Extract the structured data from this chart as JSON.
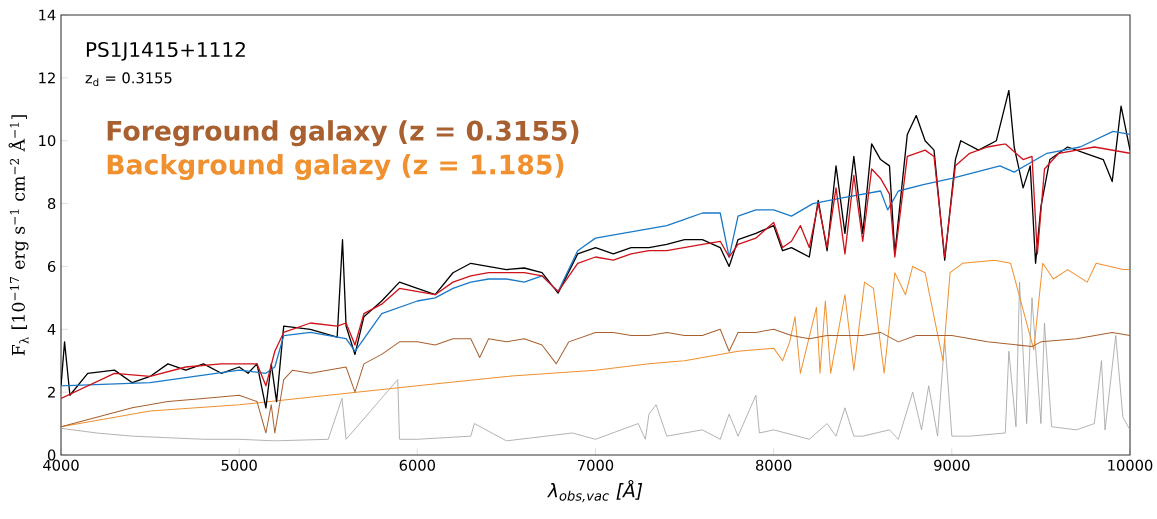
{
  "chart_data": {
    "type": "line",
    "title": "PS1J1415+1112",
    "subtitle": "z$_{d}$ = 0.3155",
    "xlabel": "λ$_{obs,vac}$ [Å]",
    "ylabel": "F$_{λ}$ [10$^{−17}$ erg s$^{−1}$ cm$^{−2}$ Å$^{−1}$]",
    "xlim": [
      4000,
      10000
    ],
    "ylim": [
      0,
      14
    ],
    "xticks": [
      4000,
      5000,
      6000,
      7000,
      8000,
      9000,
      10000
    ],
    "yticks": [
      0,
      2,
      4,
      6,
      8,
      10,
      12,
      14
    ],
    "grid": false,
    "legend": false,
    "series": [
      {
        "color": "#a0a0a0",
        "x": [
          4000,
          4200,
          4400,
          4600,
          4800,
          5000,
          5200,
          5500,
          5577,
          5600,
          5890,
          5900,
          6000,
          6300,
          6320,
          6500,
          6870,
          7000,
          7240,
          7280,
          7300,
          7340,
          7400,
          7600,
          7700,
          7750,
          7800,
          7900,
          7920,
          8000,
          8200,
          8300,
          8350,
          8400,
          8450,
          8500,
          8650,
          8700,
          8780,
          8830,
          8870,
          8920,
          8960,
          9000,
          9100,
          9300,
          9320,
          9360,
          9380,
          9420,
          9450,
          9500,
          9520,
          9560,
          9700,
          9800,
          9840,
          9860,
          9920,
          9960,
          10000
        ],
        "values": [
          0.85,
          0.7,
          0.6,
          0.55,
          0.5,
          0.5,
          0.45,
          0.5,
          1.8,
          0.5,
          2.4,
          0.5,
          0.5,
          0.6,
          1.0,
          0.45,
          0.7,
          0.5,
          1.0,
          0.5,
          1.3,
          1.6,
          0.6,
          0.8,
          0.5,
          1.3,
          0.6,
          1.9,
          0.7,
          0.8,
          0.5,
          1.0,
          0.6,
          1.5,
          0.6,
          0.6,
          0.8,
          0.5,
          2.0,
          0.8,
          2.2,
          0.6,
          3.7,
          0.6,
          0.6,
          0.7,
          3.3,
          0.9,
          5.5,
          1.0,
          5.0,
          1.0,
          4.2,
          0.9,
          0.8,
          1.0,
          3.0,
          0.8,
          3.8,
          1.2,
          0.8
        ]
      },
      {
        "name": "Background galazy (z = 1.185)",
        "color": "#f0902f",
        "x": [
          4000,
          4500,
          5000,
          5500,
          6000,
          6500,
          7000,
          7300,
          7500,
          7800,
          8000,
          8050,
          8090,
          8120,
          8150,
          8240,
          8260,
          8290,
          8320,
          8400,
          8450,
          8510,
          8560,
          8620,
          8680,
          8740,
          8780,
          8850,
          8950,
          8990,
          9060,
          9240,
          9330,
          9460,
          9510,
          9570,
          9650,
          9760,
          9810,
          9960,
          10000
        ],
        "values": [
          0.9,
          1.4,
          1.6,
          1.9,
          2.2,
          2.5,
          2.7,
          2.9,
          3.0,
          3.3,
          3.4,
          3.0,
          3.6,
          4.4,
          2.6,
          4.7,
          2.6,
          4.9,
          2.6,
          5.1,
          2.7,
          5.5,
          5.3,
          2.6,
          5.8,
          5.1,
          6.0,
          5.8,
          3.0,
          5.8,
          6.1,
          6.2,
          6.1,
          3.35,
          6.1,
          5.6,
          5.9,
          5.5,
          6.1,
          5.9,
          5.9
        ]
      },
      {
        "name": "Foreground galaxy (z = 0.3155)",
        "color": "#a86030",
        "x": [
          4000,
          4200,
          4400,
          4600,
          4800,
          5000,
          5100,
          5150,
          5180,
          5200,
          5250,
          5300,
          5400,
          5500,
          5600,
          5650,
          5700,
          5800,
          5900,
          6000,
          6100,
          6200,
          6300,
          6350,
          6400,
          6500,
          6600,
          6700,
          6780,
          6850,
          7000,
          7100,
          7200,
          7300,
          7400,
          7500,
          7600,
          7700,
          7750,
          7800,
          7900,
          8000,
          8100,
          8200,
          8300,
          8400,
          8500,
          8600,
          8700,
          8800,
          9000,
          9200,
          9450,
          9500,
          9700,
          9900,
          10000
        ],
        "values": [
          0.9,
          1.2,
          1.5,
          1.7,
          1.8,
          1.9,
          1.7,
          0.7,
          1.6,
          0.7,
          2.4,
          2.7,
          2.6,
          2.7,
          2.8,
          2.0,
          2.9,
          3.2,
          3.6,
          3.6,
          3.5,
          3.7,
          3.7,
          3.1,
          3.7,
          3.6,
          3.7,
          3.5,
          2.9,
          3.6,
          3.9,
          3.9,
          3.8,
          3.8,
          3.9,
          3.8,
          3.8,
          4.0,
          3.3,
          3.9,
          3.9,
          4.0,
          3.8,
          3.7,
          3.8,
          3.8,
          3.8,
          3.9,
          3.6,
          3.8,
          3.8,
          3.6,
          3.45,
          3.6,
          3.7,
          3.9,
          3.8
        ]
      },
      {
        "color": "#000000",
        "x": [
          4000,
          4020,
          4050,
          4150,
          4300,
          4400,
          4500,
          4600,
          4700,
          4800,
          4900,
          5000,
          5050,
          5100,
          5150,
          5180,
          5210,
          5250,
          5400,
          5550,
          5580,
          5600,
          5650,
          5700,
          5800,
          5900,
          6000,
          6100,
          6200,
          6300,
          6400,
          6500,
          6600,
          6700,
          6790,
          6900,
          7000,
          7100,
          7200,
          7300,
          7400,
          7500,
          7600,
          7700,
          7750,
          7800,
          7900,
          8000,
          8050,
          8100,
          8200,
          8250,
          8300,
          8350,
          8400,
          8450,
          8500,
          8550,
          8600,
          8650,
          8680,
          8750,
          8800,
          8850,
          8900,
          8960,
          9020,
          9050,
          9150,
          9250,
          9320,
          9350,
          9400,
          9440,
          9470,
          9500,
          9550,
          9650,
          9750,
          9850,
          9900,
          9950,
          10000
        ],
        "values": [
          2.2,
          3.6,
          1.9,
          2.6,
          2.7,
          2.3,
          2.5,
          2.9,
          2.7,
          2.9,
          2.6,
          2.8,
          2.6,
          2.9,
          1.5,
          2.9,
          1.7,
          4.1,
          4.0,
          3.75,
          6.85,
          4.1,
          3.2,
          4.4,
          4.9,
          5.5,
          5.3,
          5.1,
          5.8,
          6.1,
          6.0,
          5.9,
          5.95,
          5.8,
          5.15,
          6.4,
          6.6,
          6.4,
          6.6,
          6.6,
          6.7,
          6.85,
          6.85,
          6.6,
          6.0,
          6.85,
          7.05,
          7.3,
          6.5,
          6.6,
          6.3,
          8.1,
          6.5,
          9.2,
          7.05,
          9.5,
          7.05,
          9.9,
          9.4,
          9.2,
          6.4,
          10.2,
          10.8,
          10.0,
          9.7,
          6.2,
          9.4,
          10.0,
          9.7,
          10.0,
          11.6,
          9.8,
          8.5,
          9.2,
          6.1,
          7.9,
          9.4,
          9.8,
          9.6,
          9.4,
          8.7,
          11.1,
          9.7
        ]
      },
      {
        "color": "#1a7ac8",
        "x": [
          4000,
          4500,
          5000,
          5150,
          5200,
          5250,
          5400,
          5600,
          5650,
          5800,
          6000,
          6100,
          6200,
          6300,
          6400,
          6500,
          6600,
          6700,
          6790,
          6900,
          7000,
          7100,
          7200,
          7300,
          7400,
          7500,
          7600,
          7700,
          7750,
          7800,
          7900,
          8000,
          8100,
          8220,
          8400,
          8600,
          8640,
          8700,
          8840,
          9000,
          9270,
          9350,
          9534,
          9720,
          9905,
          10000
        ],
        "values": [
          2.2,
          2.3,
          2.7,
          2.6,
          2.8,
          3.8,
          3.9,
          3.7,
          3.3,
          4.5,
          4.9,
          5.0,
          5.3,
          5.5,
          5.6,
          5.6,
          5.5,
          5.7,
          5.2,
          6.5,
          6.9,
          7.0,
          7.1,
          7.2,
          7.3,
          7.5,
          7.7,
          7.7,
          6.3,
          7.6,
          7.8,
          7.8,
          7.6,
          8.0,
          8.2,
          8.4,
          7.8,
          8.4,
          8.6,
          8.8,
          9.2,
          9.0,
          9.6,
          9.8,
          10.3,
          10.2
        ]
      },
      {
        "color": "#d0121a",
        "x": [
          4000,
          4300,
          4500,
          4700,
          4900,
          5000,
          5100,
          5150,
          5200,
          5250,
          5400,
          5550,
          5600,
          5650,
          5700,
          5800,
          5900,
          6000,
          6100,
          6200,
          6300,
          6400,
          6500,
          6600,
          6700,
          6790,
          6900,
          7000,
          7100,
          7200,
          7300,
          7400,
          7500,
          7600,
          7700,
          7750,
          7800,
          7900,
          8000,
          8050,
          8100,
          8150,
          8200,
          8250,
          8300,
          8350,
          8400,
          8450,
          8500,
          8550,
          8600,
          8650,
          8680,
          8750,
          8850,
          8900,
          8960,
          9020,
          9100,
          9200,
          9300,
          9400,
          9450,
          9480,
          9520,
          9600,
          9700,
          9800,
          9900,
          10000
        ],
        "values": [
          1.8,
          2.6,
          2.5,
          2.8,
          2.9,
          2.9,
          2.9,
          2.2,
          3.3,
          3.9,
          4.2,
          4.1,
          4.2,
          3.5,
          4.5,
          4.8,
          5.3,
          5.2,
          5.1,
          5.5,
          5.7,
          5.8,
          5.8,
          5.8,
          5.7,
          5.2,
          6.1,
          6.3,
          6.2,
          6.4,
          6.5,
          6.5,
          6.6,
          6.7,
          6.8,
          6.3,
          6.7,
          6.9,
          7.4,
          6.6,
          6.8,
          7.3,
          6.6,
          8.0,
          6.6,
          8.5,
          6.4,
          8.9,
          6.8,
          9.1,
          8.8,
          8.3,
          6.3,
          9.5,
          9.7,
          9.5,
          6.3,
          9.2,
          9.6,
          9.8,
          9.9,
          9.4,
          9.5,
          6.4,
          9.1,
          9.6,
          9.7,
          9.8,
          9.7,
          9.6
        ]
      }
    ]
  }
}
